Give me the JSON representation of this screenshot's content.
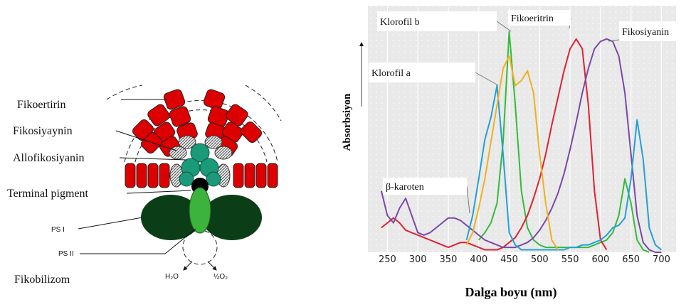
{
  "diagram": {
    "labels": [
      "Fikoertirin",
      "Fikosiyaynin",
      "Allofikosiyanin",
      "Terminal pigment",
      "PS I",
      "PS II",
      "H₂O",
      "½O₂",
      "Fikobilizom"
    ]
  },
  "chart_data": {
    "type": "line",
    "xlabel": "Dalga boyu (nm)",
    "ylabel": "Absorbsiyon",
    "x": [
      240,
      250,
      260,
      270,
      280,
      290,
      300,
      310,
      320,
      330,
      340,
      350,
      360,
      370,
      380,
      390,
      400,
      410,
      420,
      430,
      440,
      450,
      460,
      470,
      480,
      490,
      500,
      510,
      520,
      530,
      540,
      550,
      560,
      570,
      580,
      590,
      600,
      610,
      620,
      630,
      640,
      650,
      660,
      670,
      680,
      690,
      700
    ],
    "series": [
      {
        "name": "Klorofil b",
        "color": "#33bb3a",
        "values": [
          null,
          null,
          null,
          null,
          null,
          null,
          null,
          null,
          null,
          null,
          null,
          null,
          null,
          null,
          null,
          null,
          5,
          8,
          12,
          20,
          45,
          90,
          60,
          25,
          10,
          5,
          3,
          2,
          2,
          2,
          2,
          2,
          2,
          2,
          2,
          3,
          4,
          5,
          8,
          15,
          30,
          20,
          5,
          1,
          0,
          null,
          null
        ]
      },
      {
        "name": "Fikoeritrin",
        "color": "#dd2233",
        "values": [
          10,
          12,
          14,
          12,
          9,
          8,
          7,
          6,
          5,
          4,
          3,
          2,
          3,
          4,
          4,
          3,
          2,
          1,
          1,
          1,
          2,
          4,
          6,
          10,
          15,
          22,
          30,
          40,
          52,
          63,
          74,
          83,
          87,
          83,
          60,
          25,
          5,
          1,
          null,
          null,
          null,
          null,
          null,
          null,
          null,
          null,
          null
        ]
      },
      {
        "name": "Fikosiyanin",
        "color": "#7a48a8",
        "values": [
          25,
          15,
          12,
          18,
          22,
          15,
          8,
          7,
          8,
          10,
          12,
          14,
          14,
          13,
          11,
          9,
          7,
          5,
          4,
          3,
          2,
          2,
          2,
          3,
          4,
          6,
          9,
          13,
          18,
          24,
          32,
          42,
          53,
          65,
          75,
          83,
          86,
          87,
          86,
          80,
          65,
          40,
          15,
          4,
          1,
          0,
          0
        ]
      },
      {
        "name": "Klorofil a",
        "color": "#22a0d8",
        "values": [
          null,
          null,
          null,
          null,
          null,
          null,
          null,
          null,
          null,
          null,
          null,
          null,
          null,
          null,
          5,
          15,
          30,
          46,
          55,
          68,
          40,
          8,
          3,
          1,
          1,
          1,
          1,
          1,
          1,
          1,
          1,
          2,
          2,
          3,
          3,
          4,
          5,
          7,
          10,
          11,
          14,
          30,
          54,
          38,
          10,
          3,
          1
        ]
      },
      {
        "name": "β-karoten",
        "color": "#f0b020",
        "values": [
          null,
          null,
          null,
          null,
          null,
          null,
          null,
          null,
          null,
          null,
          null,
          null,
          null,
          null,
          3,
          8,
          18,
          30,
          45,
          60,
          75,
          80,
          68,
          70,
          74,
          65,
          40,
          20,
          5,
          1,
          null,
          null,
          null,
          null,
          null,
          null,
          null,
          null,
          null,
          null,
          null,
          null,
          null,
          null,
          null,
          null,
          null
        ]
      }
    ],
    "xlim": [
      218,
      724
    ],
    "xticks": [
      250,
      300,
      350,
      400,
      450,
      500,
      550,
      600,
      650,
      700
    ],
    "ylim": [
      0,
      100
    ],
    "grid": true
  }
}
